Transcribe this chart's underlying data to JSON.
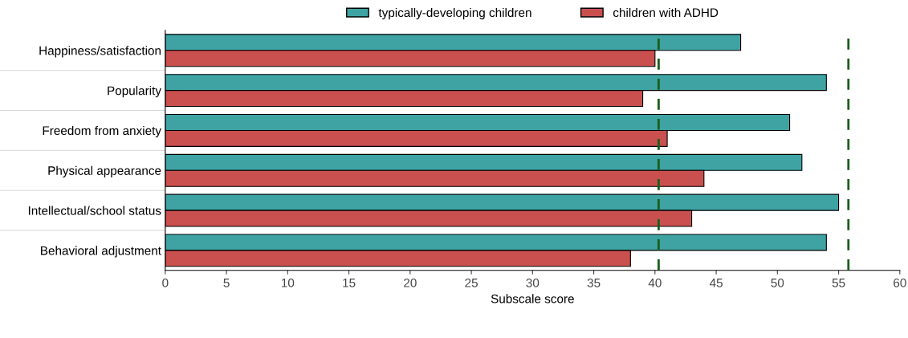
{
  "chart_data": {
    "type": "bar",
    "orientation": "horizontal",
    "xlabel": "Subscale score",
    "categories": [
      "Happiness/satisfaction",
      "Popularity",
      "Freedom from anxiety",
      "Physical appearance",
      "Intellectual/school status",
      "Behavioral adjustment"
    ],
    "series": [
      {
        "name": "typically-developing children",
        "color": "#3fa3a3",
        "values": [
          47,
          54,
          51,
          52,
          55,
          54
        ]
      },
      {
        "name": "children with ADHD",
        "color": "#c9504f",
        "values": [
          40,
          39,
          41,
          44,
          43,
          38
        ]
      }
    ],
    "xlim": [
      0,
      60
    ],
    "xticks": [
      0,
      5,
      10,
      15,
      20,
      25,
      30,
      35,
      40,
      45,
      50,
      55,
      60
    ],
    "ref_lines": [
      {
        "axis": "x",
        "value": 40.3,
        "color": "#1a5e1a",
        "line_style": "dashed"
      },
      {
        "axis": "x",
        "value": 55.8,
        "color": "#1a5e1a",
        "line_style": "dashed"
      }
    ],
    "grid": false,
    "legend": "top"
  }
}
